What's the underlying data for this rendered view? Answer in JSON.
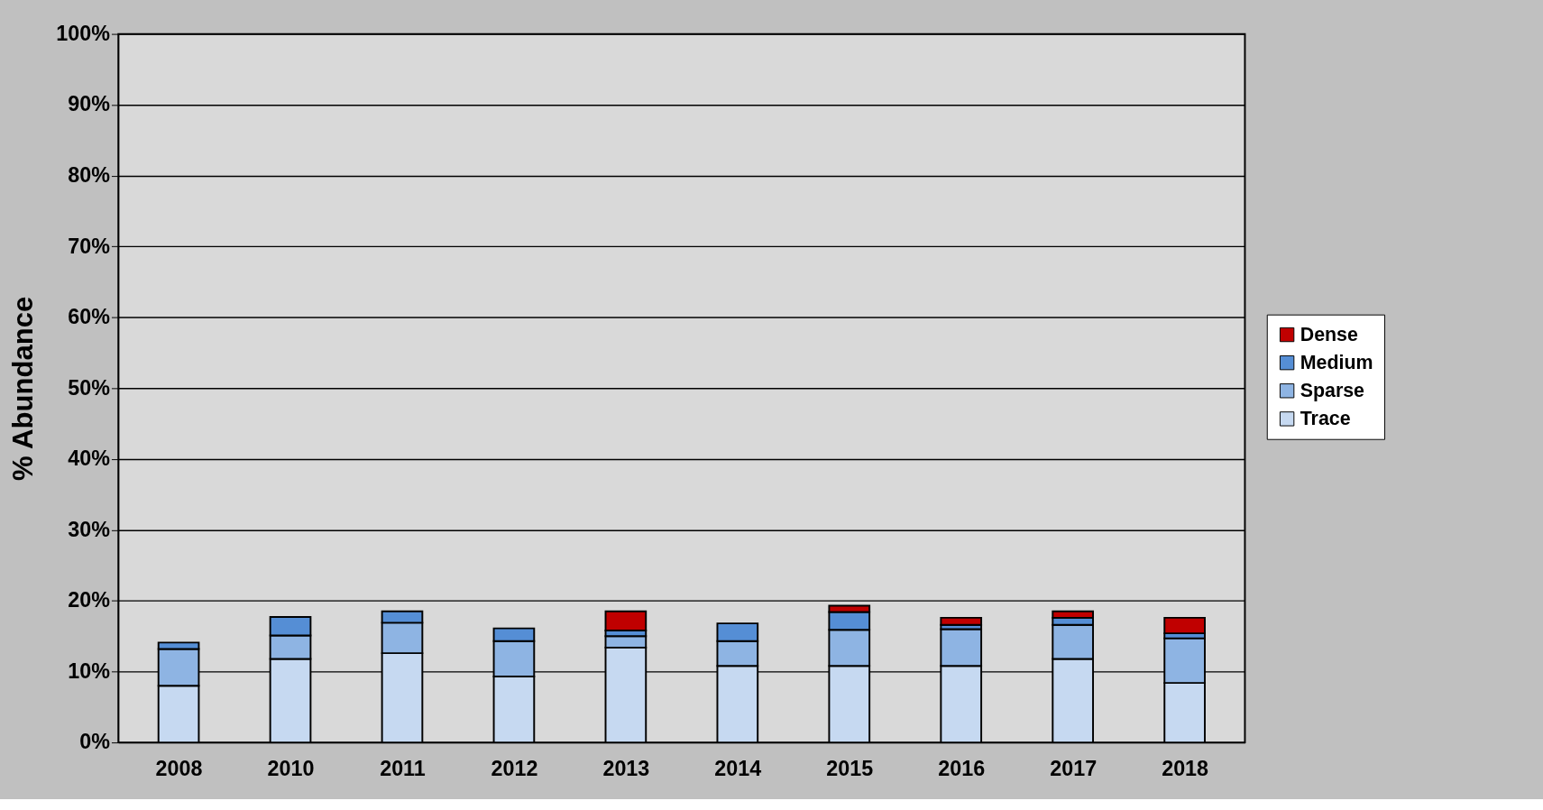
{
  "chart_data": {
    "type": "bar",
    "stacked": true,
    "ylabel": "% Abundance",
    "categories": [
      "2008",
      "2010",
      "2011",
      "2012",
      "2013",
      "2014",
      "2015",
      "2016",
      "2017",
      "2018"
    ],
    "series": [
      {
        "name": "Trace",
        "color": "#c6d9f1",
        "values": [
          8.0,
          11.8,
          12.6,
          9.3,
          13.4,
          10.8,
          10.8,
          10.8,
          11.8,
          8.4
        ]
      },
      {
        "name": "Sparse",
        "color": "#8eb4e3",
        "values": [
          5.2,
          3.3,
          4.3,
          5.0,
          1.6,
          3.5,
          5.1,
          5.2,
          4.8,
          6.3
        ]
      },
      {
        "name": "Medium",
        "color": "#558ed5",
        "values": [
          0.9,
          2.6,
          1.6,
          1.8,
          0.8,
          2.5,
          2.5,
          0.6,
          1.0,
          0.7
        ]
      },
      {
        "name": "Dense",
        "color": "#c00000",
        "values": [
          null,
          null,
          null,
          null,
          2.7,
          null,
          0.9,
          1.0,
          0.9,
          2.2
        ]
      }
    ],
    "ylim": [
      0,
      100
    ],
    "yticks": [
      {
        "value": 0,
        "label": "0%"
      },
      {
        "value": 10,
        "label": "10%"
      },
      {
        "value": 20,
        "label": "20%"
      },
      {
        "value": 30,
        "label": "30%"
      },
      {
        "value": 40,
        "label": "40%"
      },
      {
        "value": 50,
        "label": "50%"
      },
      {
        "value": 60,
        "label": "60%"
      },
      {
        "value": 70,
        "label": "70%"
      },
      {
        "value": 80,
        "label": "80%"
      },
      {
        "value": 90,
        "label": "90%"
      },
      {
        "value": 100,
        "label": "100%"
      }
    ],
    "grid": "y",
    "legend": "right"
  }
}
